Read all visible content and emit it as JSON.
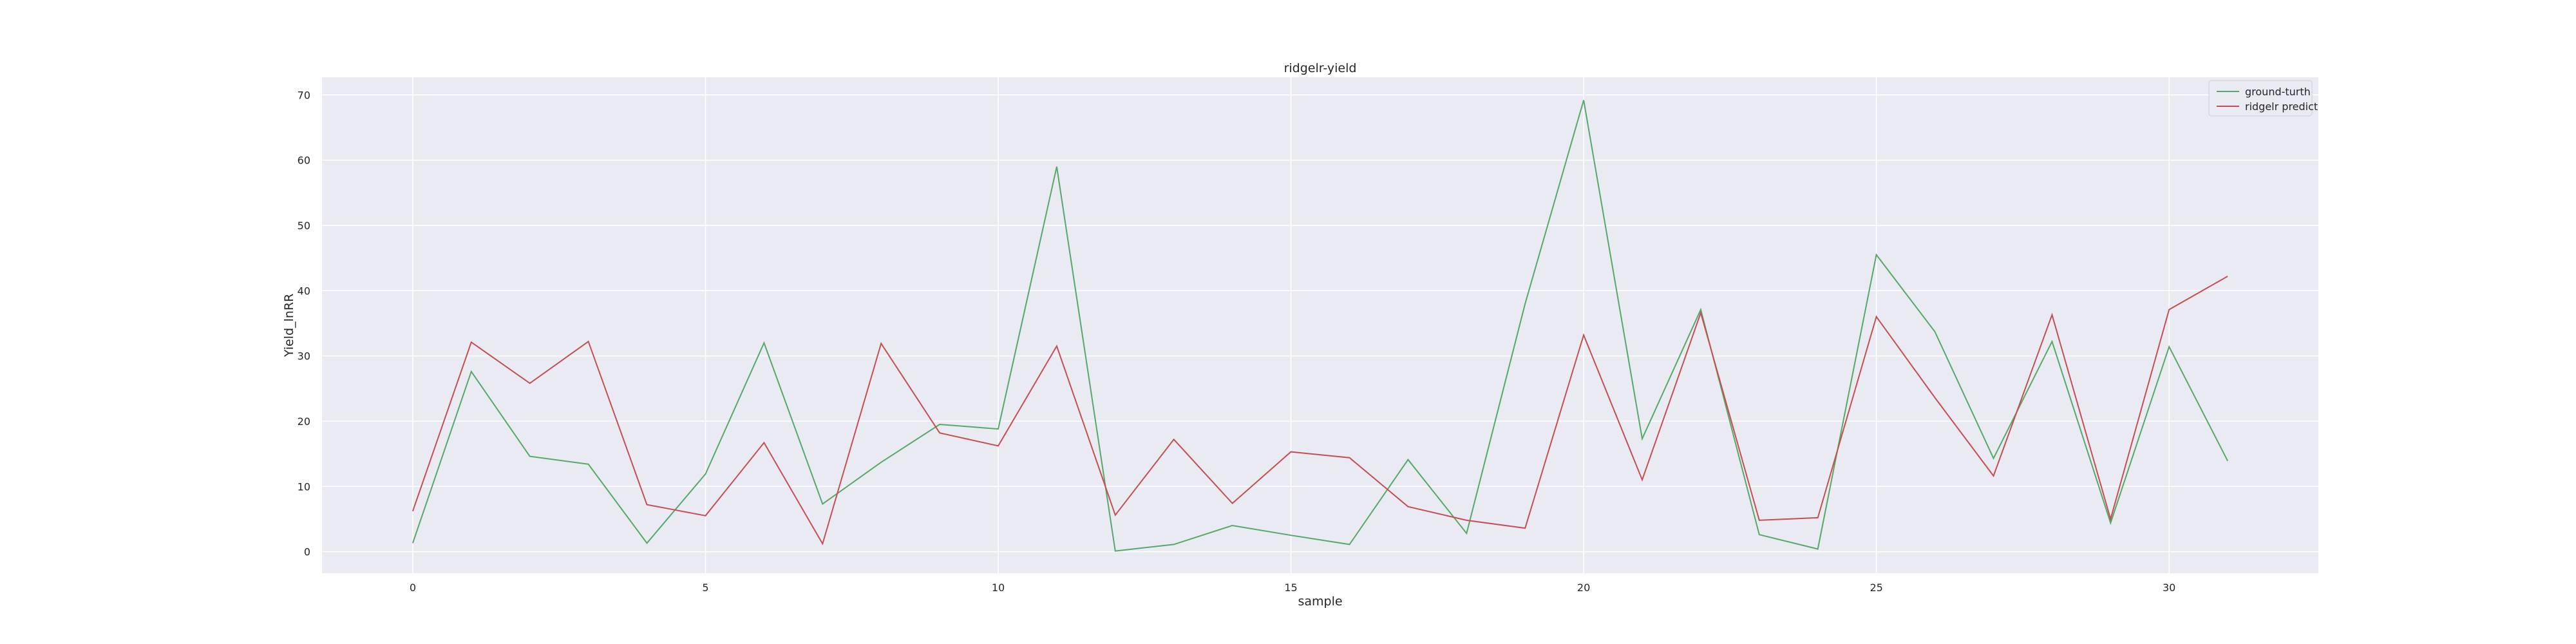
{
  "chart_data": {
    "type": "line",
    "title": "ridgelr-yield",
    "xlabel": "sample",
    "ylabel": "Yield_lnRR",
    "xlim": [
      -1.55,
      32.55
    ],
    "ylim": [
      -3.3,
      72.7
    ],
    "xticks": [
      0,
      5,
      10,
      15,
      20,
      25,
      30
    ],
    "yticks": [
      0,
      10,
      20,
      30,
      40,
      50,
      60,
      70
    ],
    "grid": true,
    "legend_position": "top-right",
    "background": "#eaeaf2",
    "x": [
      0,
      1,
      2,
      3,
      4,
      5,
      6,
      7,
      8,
      9,
      10,
      11,
      12,
      13,
      14,
      15,
      16,
      17,
      18,
      19,
      20,
      21,
      22,
      23,
      24,
      25,
      26,
      27,
      28,
      29,
      30,
      31
    ],
    "series": [
      {
        "name": "ground-turth",
        "color": "#55a868",
        "values": [
          1.3,
          27.6,
          14.6,
          13.4,
          1.3,
          11.9,
          32.0,
          7.3,
          13.7,
          19.5,
          18.8,
          59.0,
          0.1,
          1.1,
          4.0,
          2.5,
          1.1,
          14.1,
          2.8,
          38.0,
          69.2,
          17.3,
          37.1,
          2.6,
          0.4,
          45.5,
          33.7,
          14.3,
          32.2,
          4.4,
          31.4,
          13.9
        ]
      },
      {
        "name": "ridgelr predict",
        "color": "#c44e52",
        "values": [
          6.2,
          32.1,
          25.8,
          32.2,
          7.2,
          5.5,
          16.7,
          1.2,
          31.9,
          18.2,
          16.2,
          31.5,
          5.6,
          17.2,
          7.4,
          15.3,
          14.4,
          6.9,
          4.8,
          3.6,
          33.2,
          11.0,
          36.6,
          4.8,
          5.2,
          36.0,
          23.6,
          11.6,
          36.3,
          5.0,
          37.1,
          42.2
        ]
      }
    ]
  }
}
